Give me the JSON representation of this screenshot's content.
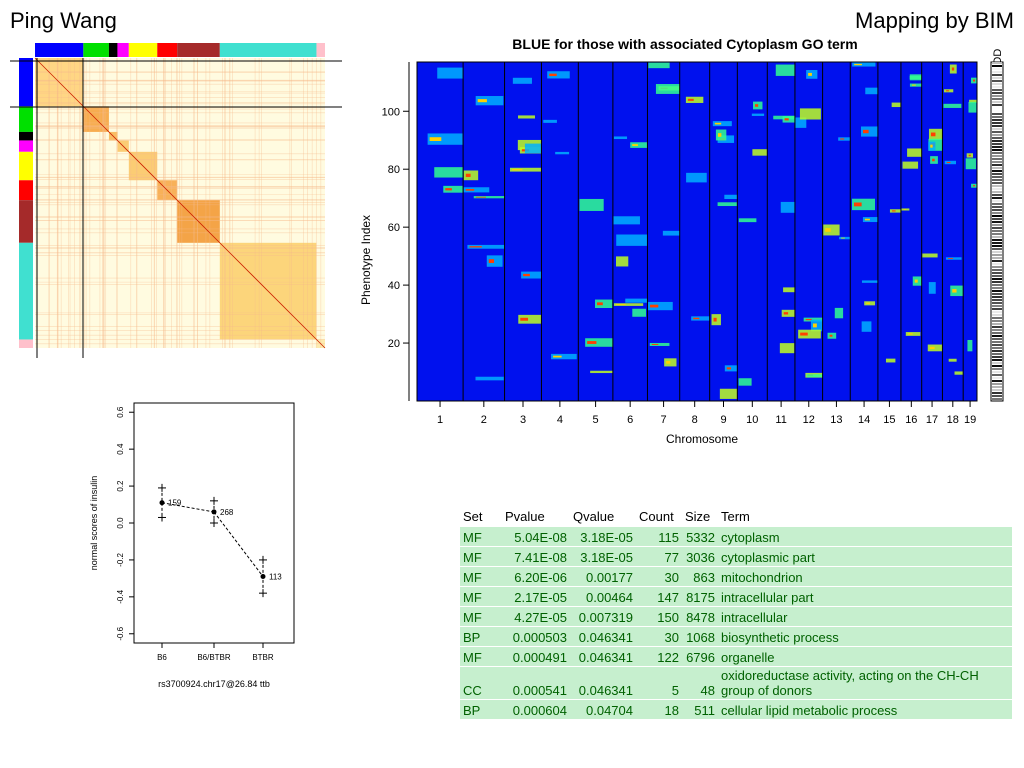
{
  "header": {
    "left_title": "Ping Wang",
    "right_title": "Mapping by BIM"
  },
  "heatmap": {
    "group_colors": [
      "#0000ff",
      "#00e000",
      "#000000",
      "#ff00ff",
      "#ffff00",
      "#ff0000",
      "#a52a2a",
      "#40e0d0",
      "#ffc0cb"
    ],
    "group_weights": [
      17,
      9,
      3,
      4,
      10,
      7,
      15,
      34,
      3
    ]
  },
  "chrmap": {
    "title": "BLUE for those with associated Cytoplasm GO term",
    "y_label": "Phenotype Index",
    "x_label": "Chromosome",
    "lod_label": "LOD",
    "y_ticks": [
      "20",
      "40",
      "60",
      "80",
      "100"
    ],
    "chromosomes": [
      "1",
      "2",
      "3",
      "4",
      "5",
      "6",
      "7",
      "8",
      "9",
      "10",
      "11",
      "12",
      "13",
      "14",
      "15",
      "16",
      "17",
      "18",
      "19"
    ],
    "y_max": 117
  },
  "dotplot": {
    "y_label": "normal scores of insulin",
    "x_label": "rs3700924.chr17@26.84 ttb",
    "y_ticks": [
      "-0.6",
      "-0.4",
      "-0.2",
      "0.0",
      "0.2",
      "0.4",
      "0.6"
    ],
    "y_range": [
      -0.65,
      0.65
    ],
    "groups": [
      {
        "label": "B6",
        "mean": 0.11,
        "upper": 0.19,
        "lower": 0.03,
        "n": "159"
      },
      {
        "label": "B6/BTBR",
        "mean": 0.06,
        "upper": 0.12,
        "lower": 0.0,
        "n": "268"
      },
      {
        "label": "BTBR",
        "mean": -0.29,
        "upper": -0.2,
        "lower": -0.38,
        "n": "113"
      }
    ]
  },
  "go_table": {
    "headers": [
      "Set",
      "Pvalue",
      "Qvalue",
      "Count",
      "Size",
      "Term"
    ],
    "rows": [
      [
        "MF",
        "5.04E-08",
        "3.18E-05",
        "115",
        "5332",
        "cytoplasm"
      ],
      [
        "MF",
        "7.41E-08",
        "3.18E-05",
        "77",
        "3036",
        "cytoplasmic part"
      ],
      [
        "MF",
        "6.20E-06",
        "0.00177",
        "30",
        "863",
        "mitochondrion"
      ],
      [
        "MF",
        "2.17E-05",
        "0.00464",
        "147",
        "8175",
        "intracellular part"
      ],
      [
        "MF",
        "4.27E-05",
        "0.007319",
        "150",
        "8478",
        "intracellular"
      ],
      [
        "BP",
        "0.000503",
        "0.046341",
        "30",
        "1068",
        "biosynthetic process"
      ],
      [
        "MF",
        "0.000491",
        "0.046341",
        "122",
        "6796",
        "organelle"
      ],
      [
        "CC",
        "0.000541",
        "0.046341",
        "5",
        "48",
        "oxidoreductase activity, acting on the CH-CH group of donors"
      ],
      [
        "BP",
        "0.000604",
        "0.04704",
        "18",
        "511",
        "cellular lipid metabolic process"
      ]
    ]
  }
}
